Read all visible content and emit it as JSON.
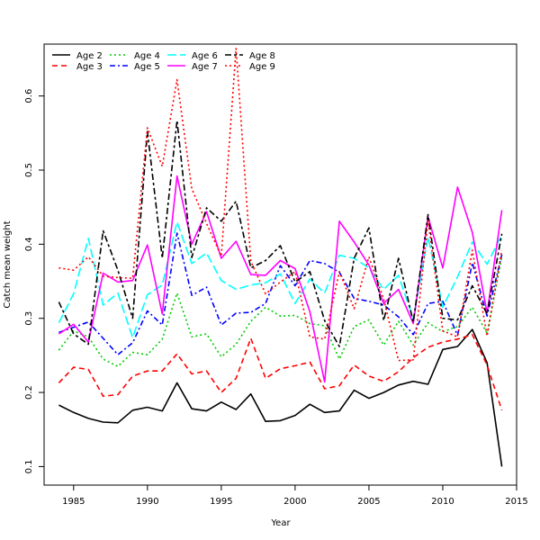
{
  "chart_data": {
    "type": "line",
    "xlabel": "Year",
    "ylabel": "Catch mean weight",
    "xlim": [
      1983,
      2015
    ],
    "ylim": [
      0.075,
      0.67
    ],
    "xticks": [
      "1985",
      "1990",
      "1995",
      "2000",
      "2005",
      "2010",
      "2015"
    ],
    "yticks": [
      "0.1",
      "0.2",
      "0.3",
      "0.4",
      "0.5",
      "0.6"
    ],
    "legend_position": "top-left",
    "x": [
      1984,
      1985,
      1986,
      1987,
      1988,
      1989,
      1990,
      1991,
      1992,
      1993,
      1994,
      1995,
      1996,
      1997,
      1998,
      1999,
      2000,
      2001,
      2002,
      2003,
      2004,
      2005,
      2006,
      2007,
      2008,
      2009,
      2010,
      2011,
      2012,
      2013,
      2014
    ],
    "series": [
      {
        "name": "Age 2",
        "color": "#000000",
        "dash": "solid",
        "values": [
          0.183,
          0.173,
          0.165,
          0.16,
          0.159,
          0.176,
          0.18,
          0.175,
          0.213,
          0.178,
          0.175,
          0.187,
          0.177,
          0.198,
          0.161,
          0.162,
          0.169,
          0.184,
          0.173,
          0.175,
          0.203,
          0.192,
          0.2,
          0.21,
          0.215,
          0.211,
          0.258,
          0.262,
          0.285,
          0.24,
          0.1
        ]
      },
      {
        "name": "Age 3",
        "color": "#ff0000",
        "dash": "dashed",
        "values": [
          0.213,
          0.234,
          0.231,
          0.195,
          0.197,
          0.222,
          0.229,
          0.229,
          0.252,
          0.225,
          0.229,
          0.2,
          0.219,
          0.273,
          0.219,
          0.232,
          0.236,
          0.241,
          0.205,
          0.209,
          0.237,
          0.222,
          0.215,
          0.228,
          0.247,
          0.261,
          0.268,
          0.272,
          0.278,
          0.237,
          0.176
        ]
      },
      {
        "name": "Age 4",
        "color": "#00cc00",
        "dash": "dotted",
        "values": [
          0.257,
          0.283,
          0.275,
          0.245,
          0.235,
          0.254,
          0.251,
          0.272,
          0.334,
          0.275,
          0.279,
          0.248,
          0.265,
          0.296,
          0.315,
          0.303,
          0.304,
          0.293,
          0.29,
          0.245,
          0.289,
          0.298,
          0.264,
          0.296,
          0.264,
          0.294,
          0.282,
          0.289,
          0.315,
          0.28,
          0.383
        ]
      },
      {
        "name": "Age 5",
        "color": "#0000ff",
        "dash": "dashdot",
        "values": [
          0.281,
          0.288,
          0.295,
          0.273,
          0.251,
          0.267,
          0.31,
          0.291,
          0.415,
          0.331,
          0.342,
          0.291,
          0.307,
          0.308,
          0.32,
          0.371,
          0.344,
          0.378,
          0.374,
          0.362,
          0.327,
          0.323,
          0.318,
          0.302,
          0.278,
          0.32,
          0.323,
          0.277,
          0.375,
          0.303,
          0.386
        ]
      },
      {
        "name": "Age 6",
        "color": "#00ffff",
        "dash": "longdash",
        "values": [
          0.294,
          0.333,
          0.408,
          0.318,
          0.334,
          0.274,
          0.332,
          0.345,
          0.43,
          0.374,
          0.388,
          0.351,
          0.339,
          0.345,
          0.348,
          0.36,
          0.32,
          0.353,
          0.334,
          0.385,
          0.381,
          0.368,
          0.339,
          0.358,
          0.299,
          0.41,
          0.315,
          0.356,
          0.403,
          0.373,
          0.413
        ]
      },
      {
        "name": "Age 7",
        "color": "#ff00ff",
        "dash": "solid",
        "values": [
          0.279,
          0.292,
          0.268,
          0.361,
          0.349,
          0.351,
          0.399,
          0.306,
          0.492,
          0.4,
          0.444,
          0.381,
          0.404,
          0.359,
          0.358,
          0.378,
          0.367,
          0.309,
          0.214,
          0.431,
          0.403,
          0.372,
          0.32,
          0.339,
          0.293,
          0.437,
          0.368,
          0.477,
          0.416,
          0.307,
          0.446
        ]
      },
      {
        "name": "Age 8",
        "color": "#000000",
        "dash": "twodash",
        "values": [
          0.322,
          0.279,
          0.265,
          0.418,
          0.365,
          0.3,
          0.552,
          0.381,
          0.567,
          0.382,
          0.449,
          0.431,
          0.458,
          0.368,
          0.378,
          0.398,
          0.349,
          0.363,
          0.297,
          0.262,
          0.381,
          0.422,
          0.297,
          0.381,
          0.295,
          0.44,
          0.3,
          0.298,
          0.344,
          0.306,
          0.414
        ]
      },
      {
        "name": "Age 9",
        "color": "#ff0000",
        "dash": "dotted",
        "values": [
          0.368,
          0.365,
          0.383,
          0.357,
          0.355,
          0.354,
          0.557,
          0.505,
          0.622,
          0.475,
          0.428,
          0.384,
          0.664,
          0.377,
          0.333,
          0.349,
          0.363,
          0.275,
          0.272,
          0.363,
          0.313,
          0.383,
          0.326,
          0.243,
          0.244,
          0.432,
          0.283,
          0.275,
          0.392,
          0.276,
          0.392
        ]
      }
    ]
  }
}
